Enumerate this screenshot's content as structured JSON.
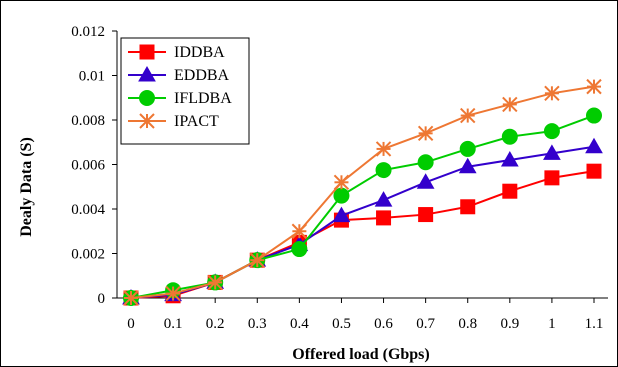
{
  "chart_data": {
    "type": "line",
    "x": [
      0,
      0.1,
      0.2,
      0.3,
      0.4,
      0.5,
      0.6,
      0.7,
      0.8,
      0.9,
      1,
      1.1
    ],
    "x_tick_labels": [
      "0",
      "0.1",
      "0.2",
      "0.3",
      "0.4",
      "0.5",
      "0.6",
      "0.7",
      "0.8",
      "0.9",
      "1",
      "1.1"
    ],
    "y_tick_labels": [
      "0",
      "0.002",
      "0.004",
      "0.006",
      "0.008",
      "0.01",
      "0.012"
    ],
    "y_ticks": [
      0,
      0.002,
      0.004,
      0.006,
      0.008,
      0.01,
      0.012
    ],
    "ylim": [
      0,
      0.012
    ],
    "xlabel": "Offered load (Gbps)",
    "ylabel": "Dealy Data (S)",
    "grid": false,
    "legend_position": "top-left",
    "series": [
      {
        "name": "IDDBA",
        "color": "#ff0000",
        "marker": "square",
        "values": [
          0,
          0.0001,
          0.0007,
          0.0017,
          0.0025,
          0.0035,
          0.0036,
          0.00375,
          0.0041,
          0.0048,
          0.0054,
          0.0057
        ]
      },
      {
        "name": "EDDBA",
        "color": "#3300cc",
        "marker": "triangle",
        "values": [
          0,
          0.00015,
          0.0007,
          0.0017,
          0.0024,
          0.0037,
          0.0044,
          0.0052,
          0.0059,
          0.0062,
          0.0065,
          0.0068
        ]
      },
      {
        "name": "IFLDBA",
        "color": "#00cc00",
        "marker": "circle",
        "values": [
          0,
          0.00035,
          0.0007,
          0.0017,
          0.0022,
          0.0046,
          0.00575,
          0.0061,
          0.0067,
          0.00725,
          0.0075,
          0.0082
        ]
      },
      {
        "name": "IPACT",
        "color": "#ee7733",
        "marker": "asterisk",
        "values": [
          0,
          0.0002,
          0.0007,
          0.0017,
          0.003,
          0.0052,
          0.0067,
          0.0074,
          0.0082,
          0.0087,
          0.0092,
          0.0095
        ]
      }
    ]
  }
}
